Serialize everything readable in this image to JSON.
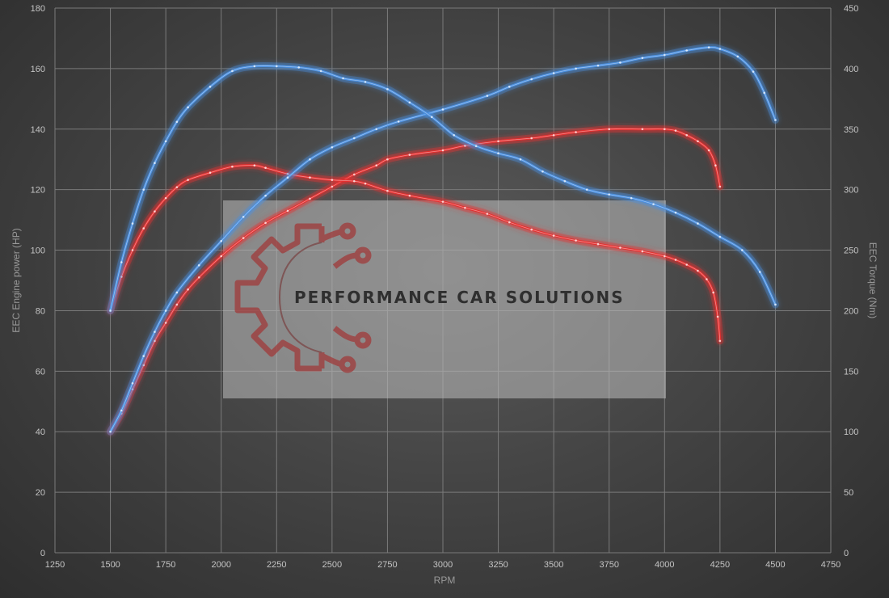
{
  "chart_data": {
    "type": "line",
    "xlabel": "RPM",
    "ylabel_left": "EEC Engine power (HP)",
    "ylabel_right": "EEC Torque (Nm)",
    "xlim": [
      1250,
      4750
    ],
    "xticks": [
      1250,
      1500,
      1750,
      2000,
      2250,
      2500,
      2750,
      3000,
      3250,
      3500,
      3750,
      4000,
      4250,
      4500,
      4750
    ],
    "ylim_left": [
      0,
      180
    ],
    "yticks_left": [
      0,
      20,
      40,
      60,
      80,
      100,
      120,
      140,
      160,
      180
    ],
    "ylim_right": [
      0,
      450
    ],
    "yticks_right": [
      0,
      50,
      100,
      150,
      200,
      250,
      300,
      350,
      400,
      450
    ],
    "grid": true,
    "watermark": "PERFORMANCE CAR SOLUTIONS",
    "colors": {
      "stock": "#e53030",
      "tuned": "#4a8fe0"
    },
    "series": [
      {
        "axis": "left",
        "color": "stock",
        "points": [
          [
            1500,
            40
          ],
          [
            1550,
            46
          ],
          [
            1600,
            54
          ],
          [
            1650,
            62
          ],
          [
            1700,
            70
          ],
          [
            1750,
            76
          ],
          [
            1800,
            82
          ],
          [
            1850,
            87
          ],
          [
            1900,
            91
          ],
          [
            2000,
            98
          ],
          [
            2100,
            104
          ],
          [
            2200,
            109
          ],
          [
            2300,
            113
          ],
          [
            2400,
            117
          ],
          [
            2500,
            121
          ],
          [
            2600,
            125
          ],
          [
            2700,
            128
          ],
          [
            2750,
            130
          ],
          [
            2850,
            131.5
          ],
          [
            3000,
            133
          ],
          [
            3100,
            134.5
          ],
          [
            3250,
            136
          ],
          [
            3400,
            137
          ],
          [
            3500,
            138
          ],
          [
            3600,
            139
          ],
          [
            3750,
            140
          ],
          [
            3900,
            140
          ],
          [
            4000,
            140
          ],
          [
            4050,
            139.5
          ],
          [
            4100,
            138
          ],
          [
            4150,
            136
          ],
          [
            4200,
            133
          ],
          [
            4230,
            128
          ],
          [
            4250,
            121
          ]
        ]
      },
      {
        "axis": "right",
        "color": "stock",
        "points": [
          [
            1500,
            200
          ],
          [
            1550,
            228
          ],
          [
            1600,
            250
          ],
          [
            1650,
            268
          ],
          [
            1700,
            282
          ],
          [
            1750,
            293
          ],
          [
            1800,
            302
          ],
          [
            1850,
            308
          ],
          [
            1950,
            314
          ],
          [
            2050,
            319
          ],
          [
            2150,
            320
          ],
          [
            2200,
            318
          ],
          [
            2300,
            313
          ],
          [
            2400,
            310
          ],
          [
            2500,
            308
          ],
          [
            2600,
            307
          ],
          [
            2650,
            305
          ],
          [
            2750,
            299
          ],
          [
            2850,
            295
          ],
          [
            3000,
            290
          ],
          [
            3100,
            285
          ],
          [
            3200,
            280
          ],
          [
            3300,
            273
          ],
          [
            3400,
            267
          ],
          [
            3500,
            262
          ],
          [
            3600,
            258
          ],
          [
            3700,
            255
          ],
          [
            3800,
            252
          ],
          [
            3900,
            249
          ],
          [
            4000,
            245
          ],
          [
            4050,
            242
          ],
          [
            4100,
            238
          ],
          [
            4150,
            233
          ],
          [
            4190,
            226
          ],
          [
            4220,
            215
          ],
          [
            4240,
            195
          ],
          [
            4250,
            175
          ]
        ]
      },
      {
        "axis": "left",
        "color": "tuned",
        "points": [
          [
            1500,
            40
          ],
          [
            1550,
            47
          ],
          [
            1600,
            56
          ],
          [
            1650,
            65
          ],
          [
            1700,
            73
          ],
          [
            1750,
            80
          ],
          [
            1800,
            86
          ],
          [
            1900,
            95
          ],
          [
            2000,
            103
          ],
          [
            2100,
            111
          ],
          [
            2200,
            118
          ],
          [
            2300,
            124
          ],
          [
            2400,
            130
          ],
          [
            2500,
            134
          ],
          [
            2600,
            137
          ],
          [
            2700,
            140
          ],
          [
            2800,
            142.5
          ],
          [
            3000,
            146.5
          ],
          [
            3200,
            151
          ],
          [
            3300,
            154
          ],
          [
            3400,
            156.5
          ],
          [
            3500,
            158.5
          ],
          [
            3600,
            160
          ],
          [
            3700,
            161
          ],
          [
            3800,
            162
          ],
          [
            3900,
            163.5
          ],
          [
            4000,
            164.5
          ],
          [
            4100,
            166
          ],
          [
            4200,
            167
          ],
          [
            4250,
            166.5
          ],
          [
            4330,
            164
          ],
          [
            4400,
            159
          ],
          [
            4450,
            152
          ],
          [
            4500,
            143
          ]
        ]
      },
      {
        "axis": "right",
        "color": "tuned",
        "points": [
          [
            1500,
            200
          ],
          [
            1550,
            240
          ],
          [
            1600,
            272
          ],
          [
            1650,
            300
          ],
          [
            1700,
            322
          ],
          [
            1750,
            340
          ],
          [
            1800,
            356
          ],
          [
            1850,
            368
          ],
          [
            1950,
            385
          ],
          [
            2050,
            398
          ],
          [
            2150,
            402
          ],
          [
            2250,
            402
          ],
          [
            2350,
            401
          ],
          [
            2450,
            398
          ],
          [
            2550,
            392
          ],
          [
            2650,
            389
          ],
          [
            2750,
            383
          ],
          [
            2850,
            372
          ],
          [
            2950,
            360
          ],
          [
            3050,
            345
          ],
          [
            3150,
            336
          ],
          [
            3250,
            330
          ],
          [
            3350,
            325
          ],
          [
            3450,
            315
          ],
          [
            3550,
            307
          ],
          [
            3650,
            300
          ],
          [
            3750,
            296
          ],
          [
            3850,
            293
          ],
          [
            3950,
            288
          ],
          [
            4050,
            281
          ],
          [
            4150,
            272
          ],
          [
            4250,
            261
          ],
          [
            4350,
            250
          ],
          [
            4430,
            232
          ],
          [
            4500,
            205
          ]
        ]
      }
    ]
  }
}
